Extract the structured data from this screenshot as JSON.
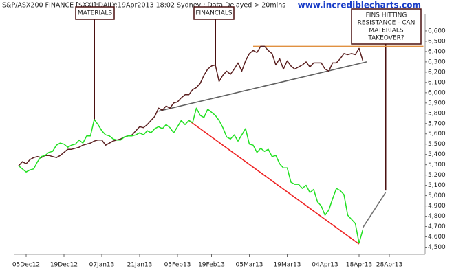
{
  "chart_data": {
    "type": "line",
    "title": "S&P/ASX200 FINANCE [$XXJ]:DAILY:19Apr2013 18:02 Sydney : Data Delayed > 20mins",
    "watermark": "www.incrediblecharts.com",
    "categories": [
      null,
      null,
      "05Dec12",
      null,
      null,
      null,
      null,
      null,
      null,
      null,
      null,
      null,
      "19Dec12",
      null,
      null,
      null,
      null,
      null,
      null,
      null,
      null,
      null,
      "07Jan13",
      null,
      null,
      null,
      null,
      null,
      null,
      null,
      null,
      null,
      "21Jan13",
      null,
      null,
      null,
      null,
      null,
      null,
      null,
      null,
      null,
      "05Feb13",
      null,
      null,
      null,
      null,
      null,
      null,
      null,
      null,
      "19Feb13",
      null,
      null,
      null,
      null,
      null,
      null,
      null,
      null,
      null,
      "05Mar13",
      null,
      null,
      null,
      null,
      null,
      null,
      null,
      null,
      null,
      "19Mar13",
      null,
      null,
      null,
      null,
      null,
      null,
      null,
      null,
      null,
      "04Apr13",
      null,
      null,
      null,
      null,
      null,
      null,
      null,
      null,
      "18Apr13",
      null,
      null,
      null,
      null,
      null,
      null,
      null,
      "28Apr13",
      null,
      null,
      null,
      null,
      null,
      null,
      null,
      null,
      null
    ],
    "series": [
      {
        "color": "#5a1f1f",
        "values": [
          5290,
          5330,
          5310,
          5350,
          5370,
          5380,
          5370,
          5390,
          5390,
          5380,
          5370,
          5390,
          5420,
          5450,
          5450,
          5460,
          5470,
          5490,
          5500,
          5510,
          5530,
          5540,
          5540,
          5490,
          5510,
          5530,
          5540,
          5550,
          5570,
          5580,
          5590,
          5630,
          5670,
          5660,
          5690,
          5730,
          5770,
          5850,
          5830,
          5870,
          5850,
          5900,
          5910,
          5950,
          5980,
          5980,
          6030,
          6050,
          6090,
          6170,
          6230,
          6260,
          6270,
          6110,
          6170,
          6210,
          6180,
          6230,
          6290,
          6210,
          6310,
          6380,
          6410,
          6390,
          6450,
          6450,
          6410,
          6380,
          6270,
          6330,
          6230,
          6310,
          6260,
          6230,
          6250,
          6270,
          6300,
          6250,
          6290,
          6290,
          6290,
          6230,
          6210,
          6290,
          6290,
          6330,
          6380,
          6370,
          6380,
          6370,
          6430,
          6310,
          null,
          null,
          null,
          null,
          null,
          null,
          null,
          null,
          null,
          null,
          null,
          null,
          null,
          null,
          null,
          null
        ]
      },
      {
        "color": "#22e022",
        "values": [
          5290,
          5260,
          5230,
          5250,
          5260,
          5330,
          5380,
          5390,
          5420,
          5430,
          5490,
          5510,
          5500,
          5470,
          5490,
          5500,
          5540,
          5510,
          5580,
          5580,
          5740,
          5690,
          5630,
          5590,
          5580,
          5550,
          5540,
          5540,
          5570,
          5580,
          5580,
          5590,
          5610,
          5590,
          5630,
          5610,
          5650,
          5670,
          5650,
          5690,
          5660,
          5610,
          5670,
          5730,
          5690,
          5730,
          5710,
          5850,
          5780,
          5760,
          5840,
          5810,
          5780,
          5730,
          5660,
          5570,
          5550,
          5590,
          5530,
          5590,
          5650,
          5500,
          5490,
          5420,
          5460,
          5430,
          5450,
          5380,
          5390,
          5310,
          5270,
          5270,
          5130,
          5110,
          5110,
          5070,
          5100,
          5030,
          5060,
          4940,
          4900,
          4810,
          4860,
          4970,
          5070,
          5050,
          5010,
          4810,
          4770,
          4730,
          4540,
          4670,
          null,
          null,
          null,
          null,
          null,
          null,
          null,
          null,
          null,
          null,
          null,
          null,
          null,
          null,
          null,
          null
        ]
      }
    ],
    "trendlines": [
      {
        "color": "#e09040",
        "x": [
          62,
          107
        ],
        "values": [
          6450,
          6450
        ]
      },
      {
        "color": "#606060",
        "x": [
          37,
          92
        ],
        "values": [
          5820,
          6300
        ]
      },
      {
        "color": "#ee2222",
        "x": [
          45,
          90
        ],
        "values": [
          5730,
          4530
        ]
      },
      {
        "color": "#707070",
        "x": [
          91,
          97
        ],
        "values": [
          4690,
          5030
        ]
      }
    ],
    "annotations": [
      {
        "lines": [
          "MATERIALS"
        ],
        "x": 20,
        "value": 5740
      },
      {
        "lines": [
          "FINANCIALS"
        ],
        "x": 52,
        "value": 6270
      },
      {
        "lines": [
          "FINS HITTING",
          "RESISTANCE - CAN",
          "MATERIALS",
          "TAKEOVER?"
        ],
        "x": 97,
        "value": 5050
      }
    ],
    "ylim": [
      4430,
      6900
    ],
    "yticks": [
      {
        "value": 4500,
        "label": "4,500"
      },
      {
        "value": 4600,
        "label": "4,600"
      },
      {
        "value": 4700,
        "label": "4,700"
      },
      {
        "value": 4800,
        "label": "4,800"
      },
      {
        "value": 4900,
        "label": "4,900"
      },
      {
        "value": 5000,
        "label": "5,000"
      },
      {
        "value": 5100,
        "label": "5,100"
      },
      {
        "value": 5200,
        "label": "5,200"
      },
      {
        "value": 5300,
        "label": "5,300"
      },
      {
        "value": 5400,
        "label": "5,400"
      },
      {
        "value": 5500,
        "label": "5,500"
      },
      {
        "value": 5600,
        "label": "5,600"
      },
      {
        "value": 5700,
        "label": "5,700"
      },
      {
        "value": 5800,
        "label": "5,800"
      },
      {
        "value": 5900,
        "label": "5,900"
      },
      {
        "value": 6000,
        "label": "6,000"
      },
      {
        "value": 6100,
        "label": "6,100"
      },
      {
        "value": 6200,
        "label": "6,200"
      },
      {
        "value": 6300,
        "label": "6,300"
      },
      {
        "value": 6400,
        "label": "6,400"
      },
      {
        "value": 6500,
        "label": "6,500"
      },
      {
        "value": 6600,
        "label": "6,600"
      }
    ]
  }
}
